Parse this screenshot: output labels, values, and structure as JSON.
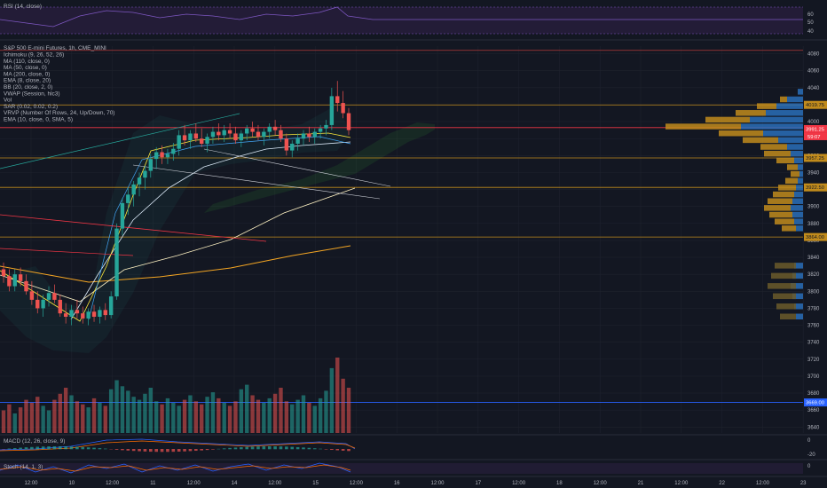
{
  "chart_data": {
    "type": "candlestick",
    "title": "S&P 500 E-mini Futures, 1h, CME_MINI",
    "indicators": [
      "Ichimoku (9, 26, 52, 26)",
      "MA (110, close, 0)",
      "MA (50, close, 0)",
      "MA (200, close, 0)",
      "EMA (8, close, 20)",
      "BB (20, close, 2, 0)",
      "VWAP (Session, hlc3)",
      "Vol",
      "SAR (0.02, 0.02, 0.2)",
      "VRVP (Number Of Rows, 24, Up/Down, 70)",
      "EMA (10, close, 0, SMA, 5)"
    ],
    "x_ticks": [
      "12:00",
      "10",
      "12:00",
      "11",
      "12:00",
      "14",
      "12:00",
      "15",
      "12:00",
      "16",
      "12:00",
      "17",
      "12:00",
      "18",
      "12:00",
      "21",
      "12:00",
      "22",
      "12:00",
      "23"
    ],
    "price_ticks": [
      4080,
      4060,
      4040,
      4020,
      4000,
      3980,
      3960,
      3940,
      3920,
      3900,
      3880,
      3860,
      3840,
      3820,
      3800,
      3780,
      3760,
      3740,
      3720,
      3700,
      3680,
      3660,
      3640
    ],
    "ylim": [
      3633,
      4089
    ],
    "price_tags": [
      {
        "value": 4019.75,
        "label": "4019.75",
        "kind": "level"
      },
      {
        "value": 3991.25,
        "label": "3991.25",
        "kind": "last"
      },
      {
        "value": 3957.25,
        "label": "3957.25",
        "kind": "level"
      },
      {
        "value": 3922.5,
        "label": "3922.50",
        "kind": "level"
      },
      {
        "value": 3864.0,
        "label": "3864.00",
        "kind": "level"
      },
      {
        "value": 3669.0,
        "label": "3669.00",
        "kind": "blue"
      }
    ],
    "extra_tag": "59:07",
    "horizontal_levels": [
      {
        "value": 4084,
        "color": "#b23a3a"
      },
      {
        "value": 4019.75,
        "color": "#c18b1c"
      },
      {
        "value": 3993,
        "color": "#f23645"
      },
      {
        "value": 3957.25,
        "color": "#c18b1c"
      },
      {
        "value": 3922.5,
        "color": "#c18b1c"
      },
      {
        "value": 3864,
        "color": "#c18b1c"
      },
      {
        "value": 3669,
        "color": "#2962ff"
      }
    ],
    "candles": [
      [
        3826,
        3834,
        3810,
        3818
      ],
      [
        3818,
        3826,
        3800,
        3806
      ],
      [
        3806,
        3826,
        3800,
        3820
      ],
      [
        3820,
        3828,
        3806,
        3812
      ],
      [
        3812,
        3820,
        3796,
        3800
      ],
      [
        3800,
        3812,
        3784,
        3790
      ],
      [
        3790,
        3800,
        3774,
        3780
      ],
      [
        3780,
        3796,
        3770,
        3790
      ],
      [
        3790,
        3806,
        3782,
        3798
      ],
      [
        3798,
        3808,
        3786,
        3790
      ],
      [
        3790,
        3796,
        3770,
        3774
      ],
      [
        3774,
        3786,
        3762,
        3770
      ],
      [
        3770,
        3784,
        3760,
        3778
      ],
      [
        3778,
        3790,
        3768,
        3774
      ],
      [
        3774,
        3782,
        3762,
        3768
      ],
      [
        3768,
        3780,
        3760,
        3776
      ],
      [
        3776,
        3784,
        3764,
        3770
      ],
      [
        3770,
        3782,
        3762,
        3778
      ],
      [
        3778,
        3786,
        3766,
        3772
      ],
      [
        3772,
        3800,
        3768,
        3794
      ],
      [
        3794,
        3880,
        3790,
        3874
      ],
      [
        3874,
        3910,
        3866,
        3904
      ],
      [
        3904,
        3922,
        3890,
        3914
      ],
      [
        3914,
        3930,
        3900,
        3926
      ],
      [
        3926,
        3940,
        3912,
        3934
      ],
      [
        3934,
        3948,
        3920,
        3942
      ],
      [
        3942,
        3962,
        3934,
        3956
      ],
      [
        3956,
        3970,
        3944,
        3964
      ],
      [
        3964,
        3972,
        3950,
        3958
      ],
      [
        3958,
        3968,
        3950,
        3962
      ],
      [
        3962,
        3975,
        3954,
        3968
      ],
      [
        3968,
        3990,
        3960,
        3984
      ],
      [
        3984,
        3996,
        3972,
        3978
      ],
      [
        3978,
        3990,
        3968,
        3986
      ],
      [
        3986,
        3998,
        3976,
        3980
      ],
      [
        3980,
        3992,
        3970,
        3974
      ],
      [
        3974,
        3986,
        3964,
        3982
      ],
      [
        3982,
        3994,
        3974,
        3988
      ],
      [
        3988,
        3998,
        3978,
        3984
      ],
      [
        3984,
        3996,
        3976,
        3990
      ],
      [
        3990,
        3998,
        3980,
        3986
      ],
      [
        3986,
        3994,
        3974,
        3978
      ],
      [
        3978,
        3990,
        3970,
        3986
      ],
      [
        3986,
        3996,
        3978,
        3992
      ],
      [
        3992,
        4000,
        3982,
        3988
      ],
      [
        3988,
        3996,
        3978,
        3982
      ],
      [
        3982,
        3992,
        3972,
        3988
      ],
      [
        3988,
        3998,
        3980,
        3994
      ],
      [
        3994,
        4002,
        3984,
        3990
      ],
      [
        3990,
        3996,
        3976,
        3980
      ],
      [
        3980,
        3986,
        3960,
        3966
      ],
      [
        3966,
        3978,
        3958,
        3974
      ],
      [
        3974,
        3986,
        3966,
        3980
      ],
      [
        3980,
        3990,
        3972,
        3986
      ],
      [
        3986,
        3994,
        3976,
        3982
      ],
      [
        3982,
        3992,
        3974,
        3988
      ],
      [
        3988,
        3996,
        3980,
        3992
      ],
      [
        3992,
        4002,
        3984,
        3996
      ],
      [
        3996,
        4040,
        3990,
        4030
      ],
      [
        4030,
        4048,
        4012,
        4022
      ],
      [
        4022,
        4036,
        4004,
        4010
      ],
      [
        4010,
        4016,
        3984,
        3990
      ]
    ],
    "volumes": [
      30,
      38,
      26,
      34,
      44,
      40,
      48,
      36,
      30,
      44,
      52,
      60,
      50,
      42,
      38,
      34,
      46,
      40,
      36,
      58,
      70,
      62,
      56,
      48,
      44,
      52,
      60,
      42,
      38,
      46,
      40,
      36,
      44,
      50,
      42,
      38,
      48,
      54,
      46,
      40,
      36,
      42,
      58,
      64,
      50,
      44,
      40,
      46,
      52,
      60,
      42,
      38,
      44,
      50,
      40,
      36,
      46,
      56,
      86,
      100,
      72,
      60
    ],
    "panes": {
      "rsi": {
        "label": "RSI (14, close)",
        "ticks": [
          60,
          50,
          40
        ]
      },
      "macd": {
        "label": "MACD (12, 26, close, 9)",
        "ticks": [
          0.0,
          -20.0
        ]
      },
      "stoch": {
        "label": "Stoch (14, 1, 3)",
        "ticks": [
          0.0
        ]
      }
    }
  }
}
